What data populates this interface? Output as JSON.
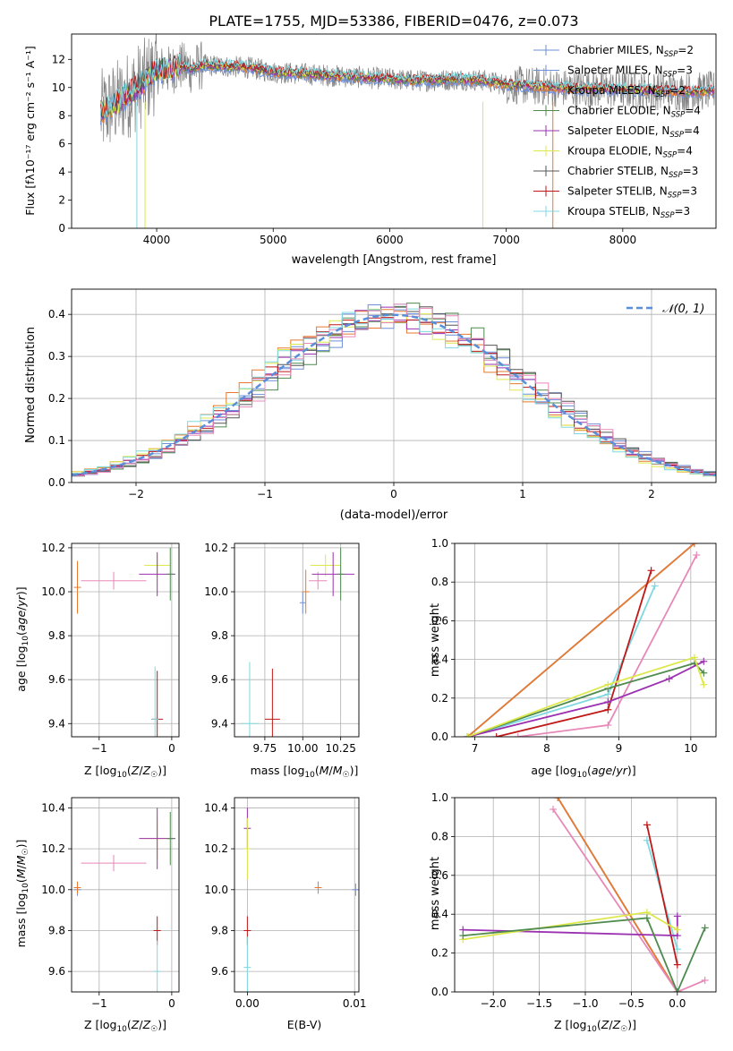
{
  "chart_data": [
    {
      "type": "line",
      "title": "PLATE=1755, MJD=53386, FIBERID=0476, z=0.073",
      "xlabel": "wavelength [Angstrom, rest frame]",
      "ylabel": "Flux [fλ10⁻¹⁷ erg cm⁻² s⁻¹ A⁻¹]",
      "xlim": [
        3270,
        8800
      ],
      "ylim": [
        0,
        13.8
      ],
      "xticks": [
        4000,
        5000,
        6000,
        7000,
        8000
      ],
      "yticks": [
        0,
        2,
        4,
        6,
        8,
        10,
        12
      ],
      "grid": false,
      "legend_position": "top-right",
      "series": [
        {
          "name": "Chabrier MILES, N_SSP=2",
          "legend": "Chabrier MILES, N",
          "sub": "SSP",
          "tail": "=2",
          "color": "#6f8fd8"
        },
        {
          "name": "Salpeter MILES, N_SSP=3",
          "legend": "Salpeter MILES, N",
          "sub": "SSP",
          "tail": "=3",
          "color": "#6f8fd8"
        },
        {
          "name": "Kroupa MILES, N_SSP=2",
          "legend": "Kroupa MILES, N",
          "sub": "SSP",
          "tail": "=2",
          "color": "#e8792e"
        },
        {
          "name": "Chabrier ELODIE, N_SSP=4",
          "legend": "Chabrier ELODIE, N",
          "sub": "SSP",
          "tail": "=4",
          "color": "#4f8a4f"
        },
        {
          "name": "Salpeter ELODIE, N_SSP=4",
          "legend": "Salpeter ELODIE, N",
          "sub": "SSP",
          "tail": "=4",
          "color": "#9b30b0"
        },
        {
          "name": "Kroupa ELODIE, N_SSP=4",
          "legend": "Kroupa ELODIE, N",
          "sub": "SSP",
          "tail": "=4",
          "color": "#dde84a"
        },
        {
          "name": "Chabrier STELIB, N_SSP=3",
          "legend": "Chabrier STELIB, N",
          "sub": "SSP",
          "tail": "=3",
          "color": "#555555"
        },
        {
          "name": "Salpeter STELIB, N_SSP=3",
          "legend": "Salpeter STELIB, N",
          "sub": "SSP",
          "tail": "=3",
          "color": "#c01818"
        },
        {
          "name": "Kroupa STELIB, N_SSP=3",
          "legend": "Kroupa STELIB, N",
          "sub": "SSP",
          "tail": "=3",
          "color": "#7fd8e0"
        }
      ],
      "data_color": "#808080",
      "model_curve": {
        "x": [
          3500,
          3600,
          3700,
          3800,
          3900,
          4000,
          4100,
          4200,
          4300,
          4400,
          4600,
          4800,
          5000,
          5200,
          5400,
          5600,
          5800,
          6000,
          6200,
          6400,
          6600,
          6800,
          7000,
          7200,
          7400,
          7600,
          7800,
          8000,
          8200,
          8400,
          8600,
          8790
        ],
        "y": [
          8.0,
          8.6,
          9.1,
          9.8,
          10.4,
          11.3,
          11.2,
          11.5,
          11.3,
          11.6,
          11.5,
          11.4,
          11.1,
          11.0,
          10.9,
          10.8,
          10.7,
          10.6,
          10.5,
          10.5,
          10.6,
          10.5,
          10.2,
          10.1,
          10.0,
          9.9,
          9.9,
          9.85,
          9.8,
          9.75,
          9.7,
          9.8
        ]
      }
    },
    {
      "type": "bar",
      "xlabel": "(data-model)/error",
      "ylabel": "Normed distribution",
      "xlim": [
        -2.5,
        2.5
      ],
      "ylim": [
        0,
        0.46
      ],
      "xticks": [
        -2,
        -1,
        0,
        1,
        2
      ],
      "yticks": [
        0.0,
        0.1,
        0.2,
        0.3,
        0.4
      ],
      "grid": true,
      "legend_position": "top-right",
      "reference_curve": {
        "name": "N(0,1)",
        "mean": 0,
        "sigma": 1,
        "color": "#5a8fd8"
      },
      "bin_width": 0.1
    },
    {
      "type": "scatter",
      "xlabel": "Z [log10(Z/Z☉)]",
      "ylabel": "age  [log10(age/yr)]",
      "xlim": [
        -1.38,
        0.1
      ],
      "ylim": [
        9.34,
        10.22
      ],
      "xticks": [
        -1,
        0
      ],
      "yticks": [
        9.4,
        9.6,
        9.8,
        10.0,
        10.2
      ],
      "grid": true,
      "points": [
        {
          "x": -1.3,
          "y": 10.02,
          "xerr": 0.0,
          "yerr": 0.12,
          "color": "#e8792e"
        },
        {
          "x": -0.8,
          "y": 10.05,
          "xerr": 0.45,
          "yerr": 0.04,
          "color": "#e888b8"
        },
        {
          "x": -0.2,
          "y": 10.12,
          "xerr": 0.18,
          "yerr": 0.05,
          "color": "#dde84a"
        },
        {
          "x": -0.2,
          "y": 10.08,
          "xerr": 0.25,
          "yerr": 0.1,
          "color": "#9b30b0"
        },
        {
          "x": -0.02,
          "y": 10.08,
          "xerr": 0.0,
          "yerr": 0.12,
          "color": "#4f8a4f"
        },
        {
          "x": -0.2,
          "y": 9.42,
          "xerr": 0.08,
          "yerr": 0.22,
          "color": "#c01818"
        },
        {
          "x": -0.23,
          "y": 9.42,
          "xerr": 0.0,
          "yerr": 0.24,
          "color": "#7fd8e0"
        }
      ]
    },
    {
      "type": "scatter",
      "xlabel": "mass [log10(M/M☉)]",
      "ylabel": "",
      "xlim": [
        9.55,
        10.37
      ],
      "ylim": [
        9.34,
        10.22
      ],
      "xticks": [
        9.75,
        10.0,
        10.25
      ],
      "xticklabels": [
        "9.75",
        "10.00",
        "10.25"
      ],
      "yticks": [
        9.4,
        9.6,
        9.8,
        10.0,
        10.2
      ],
      "grid": true,
      "points": [
        {
          "x": 10.0,
          "y": 9.95,
          "xerr": 0.02,
          "yerr": 0.05,
          "color": "#6f8fd8"
        },
        {
          "x": 10.02,
          "y": 10.0,
          "xerr": 0.0,
          "yerr": 0.1,
          "color": "#e8792e"
        },
        {
          "x": 10.1,
          "y": 10.05,
          "xerr": 0.06,
          "yerr": 0.04,
          "color": "#e888b8"
        },
        {
          "x": 10.15,
          "y": 10.12,
          "xerr": 0.1,
          "yerr": 0.05,
          "color": "#dde84a"
        },
        {
          "x": 10.2,
          "y": 10.08,
          "xerr": 0.14,
          "yerr": 0.1,
          "color": "#9b30b0"
        },
        {
          "x": 10.25,
          "y": 10.08,
          "xerr": 0.0,
          "yerr": 0.12,
          "color": "#4f8a4f"
        },
        {
          "x": 9.8,
          "y": 9.42,
          "xerr": 0.05,
          "yerr": 0.23,
          "color": "#c01818"
        },
        {
          "x": 9.65,
          "y": 9.4,
          "xerr": 0.06,
          "yerr": 0.28,
          "color": "#7fd8e0"
        }
      ]
    },
    {
      "type": "line",
      "xlabel": "age  [log10(age/yr)]",
      "ylabel": "mass weight",
      "xlim": [
        6.72,
        10.35
      ],
      "ylim": [
        0,
        1
      ],
      "xticks": [
        7,
        8,
        9,
        10
      ],
      "yticks": [
        0.0,
        0.2,
        0.4,
        0.6,
        0.8,
        1.0
      ],
      "grid": true,
      "series": [
        {
          "color": "#6f8fd8",
          "x": [
            6.9,
            10.05
          ],
          "y": [
            0.0,
            1.0
          ]
        },
        {
          "color": "#e8792e",
          "x": [
            6.9,
            10.05
          ],
          "y": [
            0.0,
            1.0
          ]
        },
        {
          "color": "#e888b8",
          "x": [
            7.6,
            8.85,
            10.08
          ],
          "y": [
            0.0,
            0.06,
            0.94
          ]
        },
        {
          "color": "#7fd8e0",
          "x": [
            6.9,
            8.85,
            9.5
          ],
          "y": [
            0.0,
            0.22,
            0.78
          ]
        },
        {
          "color": "#c01818",
          "x": [
            7.3,
            8.85,
            9.45
          ],
          "y": [
            0.0,
            0.14,
            0.86
          ]
        },
        {
          "color": "#4f8a4f",
          "x": [
            6.9,
            8.85,
            10.05,
            10.18
          ],
          "y": [
            0.0,
            0.25,
            0.38,
            0.33
          ]
        },
        {
          "color": "#9b30b0",
          "x": [
            6.9,
            8.85,
            9.7,
            10.18
          ],
          "y": [
            0.0,
            0.18,
            0.3,
            0.39
          ]
        },
        {
          "color": "#dde84a",
          "x": [
            6.9,
            8.85,
            10.05,
            10.18
          ],
          "y": [
            0.0,
            0.27,
            0.41,
            0.27
          ]
        }
      ]
    },
    {
      "type": "scatter",
      "xlabel": "Z [log10(Z/Z☉)]",
      "ylabel": "mass [log10(M/M☉)]",
      "xlim": [
        -1.38,
        0.1
      ],
      "ylim": [
        9.5,
        10.45
      ],
      "xticks": [
        -1,
        0
      ],
      "yticks": [
        9.6,
        9.8,
        10.0,
        10.2,
        10.4
      ],
      "grid": true,
      "points": [
        {
          "x": -1.3,
          "y": 10.0,
          "xerr": 0.0,
          "yerr": 0.03,
          "color": "#6f8fd8"
        },
        {
          "x": -1.3,
          "y": 10.01,
          "xerr": 0.0,
          "yerr": 0.03,
          "color": "#e8792e"
        },
        {
          "x": -0.8,
          "y": 10.13,
          "xerr": 0.45,
          "yerr": 0.04,
          "color": "#e888b8"
        },
        {
          "x": -0.2,
          "y": 10.25,
          "xerr": 0.22,
          "yerr": 0.1,
          "color": "#dde84a"
        },
        {
          "x": -0.2,
          "y": 10.25,
          "xerr": 0.25,
          "yerr": 0.15,
          "color": "#9b30b0"
        },
        {
          "x": -0.02,
          "y": 10.25,
          "xerr": 0.0,
          "yerr": 0.13,
          "color": "#4f8a4f"
        },
        {
          "x": -0.2,
          "y": 9.8,
          "xerr": 0.05,
          "yerr": 0.07,
          "color": "#c01818"
        },
        {
          "x": -0.2,
          "y": 9.6,
          "xerr": 0.05,
          "yerr": 0.15,
          "color": "#7fd8e0"
        }
      ]
    },
    {
      "type": "scatter",
      "xlabel": "E(B-V)",
      "ylabel": "",
      "xlim": [
        -0.0012,
        0.0104
      ],
      "ylim": [
        9.5,
        10.45
      ],
      "xticks": [
        0.0,
        0.01
      ],
      "xticklabels": [
        "0.00",
        "0.01"
      ],
      "yticks": [
        9.6,
        9.8,
        10.0,
        10.2,
        10.4
      ],
      "grid": true,
      "points": [
        {
          "x": 0.0,
          "y": 10.3,
          "xerr": 0.0,
          "yerr": 0.1,
          "color": "#9b30b0"
        },
        {
          "x": 0.0,
          "y": 10.2,
          "xerr": 0.0,
          "yerr": 0.15,
          "color": "#dde84a"
        },
        {
          "x": 0.0,
          "y": 9.8,
          "xerr": 0.0,
          "yerr": 0.07,
          "color": "#c01818"
        },
        {
          "x": 0.0,
          "y": 9.62,
          "xerr": 0.0,
          "yerr": 0.15,
          "color": "#7fd8e0"
        },
        {
          "x": 0.0066,
          "y": 10.01,
          "xerr": 0.0,
          "yerr": 0.03,
          "color": "#e8792e"
        },
        {
          "x": 0.0101,
          "y": 10.0,
          "xerr": 0.0,
          "yerr": 0.03,
          "color": "#6f8fd8"
        }
      ]
    },
    {
      "type": "line",
      "xlabel": "Z [log10(Z/Z☉)]",
      "ylabel": "mass weight",
      "xlim": [
        -2.42,
        0.42
      ],
      "ylim": [
        0,
        1
      ],
      "xticks": [
        -2.0,
        -1.5,
        -1.0,
        -0.5,
        0.0
      ],
      "xticklabels": [
        "−2.0",
        "−1.5",
        "−1.0",
        "−0.5",
        "0.0"
      ],
      "yticks": [
        0.0,
        0.2,
        0.4,
        0.6,
        0.8,
        1.0
      ],
      "grid": true,
      "series": [
        {
          "color": "#6f8fd8",
          "x": [
            -1.3,
            0.0
          ],
          "y": [
            1.0,
            0.0
          ]
        },
        {
          "color": "#e8792e",
          "x": [
            -1.3,
            0.0
          ],
          "y": [
            1.0,
            0.0
          ]
        },
        {
          "color": "#e888b8",
          "x": [
            -1.35,
            0.0,
            0.3
          ],
          "y": [
            0.94,
            0.0,
            0.06
          ]
        },
        {
          "color": "#7fd8e0",
          "x": [
            -0.33,
            0.0
          ],
          "y": [
            0.78,
            0.22
          ]
        },
        {
          "color": "#c01818",
          "x": [
            -0.33,
            0.0
          ],
          "y": [
            0.86,
            0.14
          ]
        },
        {
          "color": "#9b30b0",
          "x": [
            -2.33,
            0.0,
            0.0
          ],
          "y": [
            0.32,
            0.29,
            0.39
          ]
        },
        {
          "color": "#dde84a",
          "x": [
            -2.33,
            -0.33,
            0.0
          ],
          "y": [
            0.27,
            0.41,
            0.32
          ]
        },
        {
          "color": "#4f8a4f",
          "x": [
            -2.33,
            -0.33,
            0.0,
            0.3
          ],
          "y": [
            0.29,
            0.38,
            0.0,
            0.33
          ]
        }
      ]
    }
  ]
}
